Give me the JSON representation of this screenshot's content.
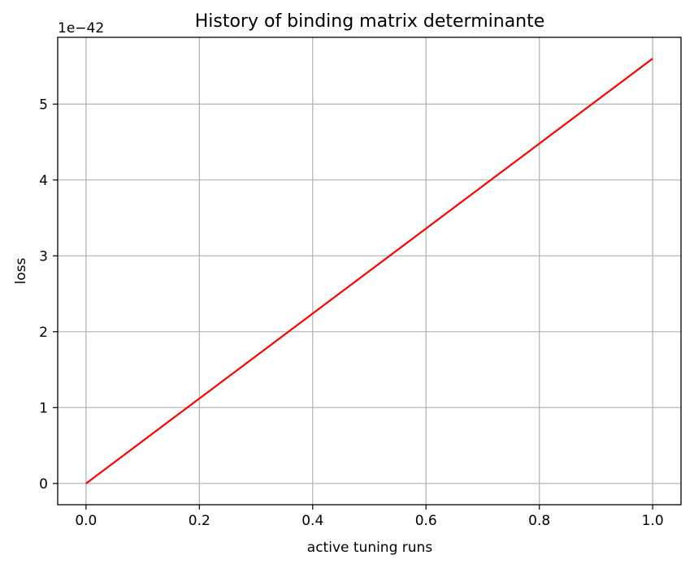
{
  "chart_data": {
    "type": "line",
    "title": "History of binding matrix determinante",
    "xlabel": "active tuning runs",
    "ylabel": "loss",
    "y_offset_text": "1e−42",
    "xlim": [
      -0.05,
      1.05
    ],
    "ylim": [
      -0.28,
      5.88
    ],
    "grid": true,
    "x_ticks": [
      0.0,
      0.2,
      0.4,
      0.6,
      0.8,
      1.0
    ],
    "x_tick_labels": [
      "0.0",
      "0.2",
      "0.4",
      "0.6",
      "0.8",
      "1.0"
    ],
    "y_ticks": [
      0,
      1,
      2,
      3,
      4,
      5
    ],
    "y_tick_labels": [
      "0",
      "1",
      "2",
      "3",
      "4",
      "5"
    ],
    "series": [
      {
        "color": "#ff0000",
        "x": [
          0.0,
          1.0
        ],
        "y": [
          0.0,
          5.6
        ]
      }
    ]
  }
}
